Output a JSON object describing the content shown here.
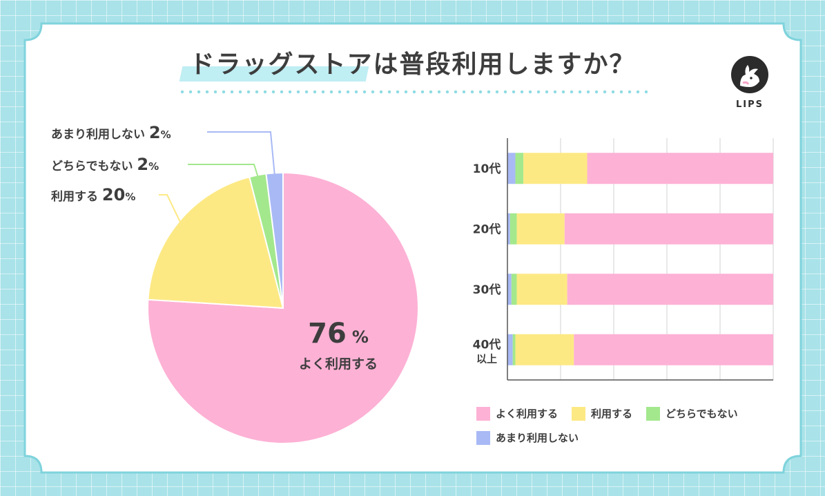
{
  "title": "ドラッグストアは普段利用しますか？",
  "logo": {
    "text": "LIPS",
    "icon": "deer-icon"
  },
  "colors": {
    "よく利用する": "#fdb1d5",
    "利用する": "#fde984",
    "どちらでもない": "#a3e88d",
    "あまり利用しない": "#a8b9f5"
  },
  "pie_labels": {
    "rarely": {
      "name": "あまり利用しない",
      "pct": "2",
      "unit": "%"
    },
    "neutral": {
      "name": "どちらでもない",
      "pct": "2",
      "unit": "%"
    },
    "use": {
      "name": "利用する",
      "pct": "20",
      "unit": "%"
    },
    "often": {
      "pct": "76",
      "unit": "%",
      "name": "よく利用する"
    }
  },
  "chart_data": [
    {
      "type": "pie",
      "title": "",
      "slices": [
        {
          "label": "よく利用する",
          "value": 76
        },
        {
          "label": "利用する",
          "value": 20
        },
        {
          "label": "どちらでもない",
          "value": 2
        },
        {
          "label": "あまり利用しない",
          "value": 2
        }
      ]
    },
    {
      "type": "bar",
      "orientation": "horizontal",
      "stacked": true,
      "categories": [
        "10代",
        "20代",
        "30代",
        "40代\n以上"
      ],
      "xlim": [
        0,
        100
      ],
      "grid": true,
      "legend_position": "bottom",
      "series": [
        {
          "name": "あまり利用しない",
          "values": [
            3,
            1,
            1.5,
            2
          ]
        },
        {
          "name": "どちらでもない",
          "values": [
            3,
            2.5,
            2,
            1
          ]
        },
        {
          "name": "利用する",
          "values": [
            24,
            18,
            19,
            22
          ]
        },
        {
          "name": "よく利用する",
          "values": [
            70,
            78.5,
            77.5,
            75
          ]
        }
      ]
    }
  ],
  "legend": [
    "よく利用する",
    "利用する",
    "どちらでもない",
    "あまり利用しない"
  ]
}
